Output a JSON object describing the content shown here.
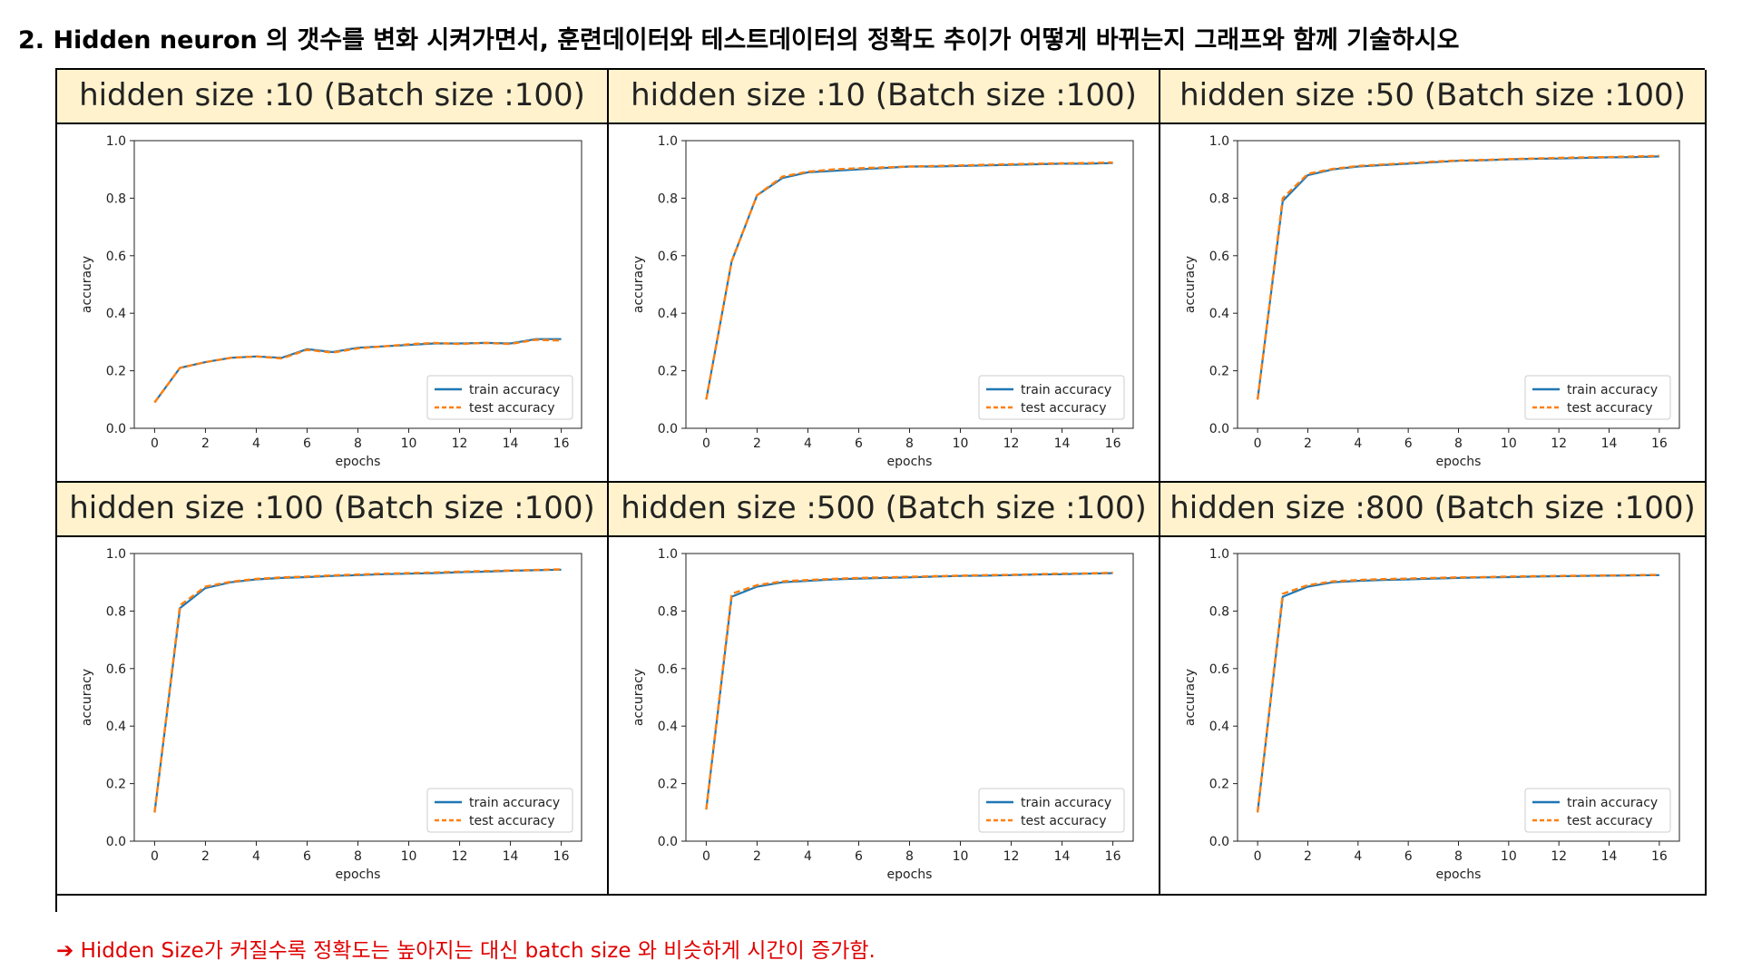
{
  "heading": "2. Hidden neuron 의 갯수를 변화 시켜가면서,  훈련데이터와 테스트데이터의 정확도 추이가 어떻게 바뀌는지 그래프와 함께 기술하시오",
  "note": "➔ Hidden Size가 커질수록 정확도는 높아지는 대신 batch size 와 비슷하게 시간이 증가함.",
  "colors": {
    "train": "#1f77b4",
    "test": "#ff7f0e",
    "header_bg": "#fff2cc",
    "note": "#e00000"
  },
  "chart_data": [
    {
      "type": "line",
      "title": "hidden size :10 (Batch size :100)",
      "xlabel": "epochs",
      "ylabel": "accuracy",
      "xlim": [
        -0.8,
        16.8
      ],
      "ylim": [
        0,
        1.0
      ],
      "xticks": [
        "0",
        "2",
        "4",
        "6",
        "8",
        "10",
        "12",
        "14",
        "16"
      ],
      "yticks": [
        "0.0",
        "0.2",
        "0.4",
        "0.6",
        "0.8",
        "1.0"
      ],
      "legend": "bottom-right",
      "x": [
        0,
        1,
        2,
        3,
        4,
        5,
        6,
        7,
        8,
        9,
        10,
        11,
        12,
        13,
        14,
        15,
        16
      ],
      "series": [
        {
          "name": "train accuracy",
          "values": [
            0.09,
            0.21,
            0.23,
            0.245,
            0.25,
            0.245,
            0.275,
            0.265,
            0.28,
            0.285,
            0.29,
            0.295,
            0.295,
            0.297,
            0.295,
            0.31,
            0.31
          ]
        },
        {
          "name": "test accuracy",
          "values": [
            0.09,
            0.21,
            0.23,
            0.245,
            0.25,
            0.243,
            0.273,
            0.263,
            0.278,
            0.285,
            0.292,
            0.297,
            0.293,
            0.297,
            0.293,
            0.308,
            0.305
          ]
        }
      ]
    },
    {
      "type": "line",
      "title": "hidden size :10 (Batch size :100)",
      "xlabel": "epochs",
      "ylabel": "accuracy",
      "xlim": [
        -0.8,
        16.8
      ],
      "ylim": [
        0,
        1.0
      ],
      "xticks": [
        "0",
        "2",
        "4",
        "6",
        "8",
        "10",
        "12",
        "14",
        "16"
      ],
      "yticks": [
        "0.0",
        "0.2",
        "0.4",
        "0.6",
        "0.8",
        "1.0"
      ],
      "legend": "bottom-right",
      "x": [
        0,
        1,
        2,
        3,
        4,
        5,
        6,
        7,
        8,
        9,
        10,
        11,
        12,
        13,
        14,
        15,
        16
      ],
      "series": [
        {
          "name": "train accuracy",
          "values": [
            0.1,
            0.58,
            0.81,
            0.87,
            0.89,
            0.895,
            0.9,
            0.905,
            0.91,
            0.91,
            0.912,
            0.914,
            0.916,
            0.918,
            0.92,
            0.92,
            0.922
          ]
        },
        {
          "name": "test accuracy",
          "values": [
            0.1,
            0.58,
            0.81,
            0.875,
            0.892,
            0.9,
            0.904,
            0.907,
            0.91,
            0.912,
            0.914,
            0.916,
            0.918,
            0.92,
            0.921,
            0.922,
            0.924
          ]
        }
      ]
    },
    {
      "type": "line",
      "title": "hidden size :50 (Batch size :100)",
      "xlabel": "epochs",
      "ylabel": "accuracy",
      "xlim": [
        -0.8,
        16.8
      ],
      "ylim": [
        0,
        1.0
      ],
      "xticks": [
        "0",
        "2",
        "4",
        "6",
        "8",
        "10",
        "12",
        "14",
        "16"
      ],
      "yticks": [
        "0.0",
        "0.2",
        "0.4",
        "0.6",
        "0.8",
        "1.0"
      ],
      "legend": "bottom-right",
      "x": [
        0,
        1,
        2,
        3,
        4,
        5,
        6,
        7,
        8,
        9,
        10,
        11,
        12,
        13,
        14,
        15,
        16
      ],
      "series": [
        {
          "name": "train accuracy",
          "values": [
            0.1,
            0.79,
            0.88,
            0.9,
            0.91,
            0.915,
            0.92,
            0.925,
            0.93,
            0.932,
            0.935,
            0.937,
            0.938,
            0.94,
            0.942,
            0.943,
            0.945
          ]
        },
        {
          "name": "test accuracy",
          "values": [
            0.1,
            0.8,
            0.885,
            0.902,
            0.912,
            0.917,
            0.922,
            0.927,
            0.931,
            0.933,
            0.936,
            0.938,
            0.94,
            0.942,
            0.943,
            0.945,
            0.947
          ]
        }
      ]
    },
    {
      "type": "line",
      "title": "hidden size :100 (Batch size :100)",
      "xlabel": "epochs",
      "ylabel": "accuracy",
      "xlim": [
        -0.8,
        16.8
      ],
      "ylim": [
        0,
        1.0
      ],
      "xticks": [
        "0",
        "2",
        "4",
        "6",
        "8",
        "10",
        "12",
        "14",
        "16"
      ],
      "yticks": [
        "0.0",
        "0.2",
        "0.4",
        "0.6",
        "0.8",
        "1.0"
      ],
      "legend": "bottom-right",
      "x": [
        0,
        1,
        2,
        3,
        4,
        5,
        6,
        7,
        8,
        9,
        10,
        11,
        12,
        13,
        14,
        15,
        16
      ],
      "series": [
        {
          "name": "train accuracy",
          "values": [
            0.1,
            0.81,
            0.88,
            0.9,
            0.91,
            0.915,
            0.918,
            0.922,
            0.925,
            0.928,
            0.93,
            0.932,
            0.935,
            0.937,
            0.94,
            0.942,
            0.944
          ]
        },
        {
          "name": "test accuracy",
          "values": [
            0.1,
            0.82,
            0.885,
            0.902,
            0.912,
            0.917,
            0.92,
            0.924,
            0.927,
            0.93,
            0.932,
            0.934,
            0.937,
            0.939,
            0.941,
            0.943,
            0.945
          ]
        }
      ]
    },
    {
      "type": "line",
      "title": "hidden size :500 (Batch size :100)",
      "xlabel": "epochs",
      "ylabel": "accuracy",
      "xlim": [
        -0.8,
        16.8
      ],
      "ylim": [
        0,
        1.0
      ],
      "xticks": [
        "0",
        "2",
        "4",
        "6",
        "8",
        "10",
        "12",
        "14",
        "16"
      ],
      "yticks": [
        "0.0",
        "0.2",
        "0.4",
        "0.6",
        "0.8",
        "1.0"
      ],
      "legend": "bottom-right",
      "x": [
        0,
        1,
        2,
        3,
        4,
        5,
        6,
        7,
        8,
        9,
        10,
        11,
        12,
        13,
        14,
        15,
        16
      ],
      "series": [
        {
          "name": "train accuracy",
          "values": [
            0.11,
            0.85,
            0.885,
            0.9,
            0.905,
            0.91,
            0.913,
            0.915,
            0.917,
            0.92,
            0.922,
            0.923,
            0.925,
            0.927,
            0.928,
            0.93,
            0.932
          ]
        },
        {
          "name": "test accuracy",
          "values": [
            0.11,
            0.86,
            0.89,
            0.903,
            0.908,
            0.912,
            0.915,
            0.917,
            0.919,
            0.921,
            0.923,
            0.925,
            0.926,
            0.928,
            0.93,
            0.931,
            0.933
          ]
        }
      ]
    },
    {
      "type": "line",
      "title": "hidden size :800 (Batch size :100)",
      "xlabel": "epochs",
      "ylabel": "accuracy",
      "xlim": [
        -0.8,
        16.8
      ],
      "ylim": [
        0,
        1.0
      ],
      "xticks": [
        "0",
        "2",
        "4",
        "6",
        "8",
        "10",
        "12",
        "14",
        "16"
      ],
      "yticks": [
        "0.0",
        "0.2",
        "0.4",
        "0.6",
        "0.8",
        "1.0"
      ],
      "legend": "bottom-right",
      "x": [
        0,
        1,
        2,
        3,
        4,
        5,
        6,
        7,
        8,
        9,
        10,
        11,
        12,
        13,
        14,
        15,
        16
      ],
      "series": [
        {
          "name": "train accuracy",
          "values": [
            0.1,
            0.85,
            0.885,
            0.9,
            0.905,
            0.908,
            0.91,
            0.913,
            0.915,
            0.917,
            0.918,
            0.92,
            0.921,
            0.922,
            0.923,
            0.924,
            0.925
          ]
        },
        {
          "name": "test accuracy",
          "values": [
            0.1,
            0.86,
            0.89,
            0.903,
            0.908,
            0.911,
            0.913,
            0.915,
            0.917,
            0.918,
            0.92,
            0.921,
            0.922,
            0.923,
            0.924,
            0.925,
            0.926
          ]
        }
      ]
    }
  ]
}
